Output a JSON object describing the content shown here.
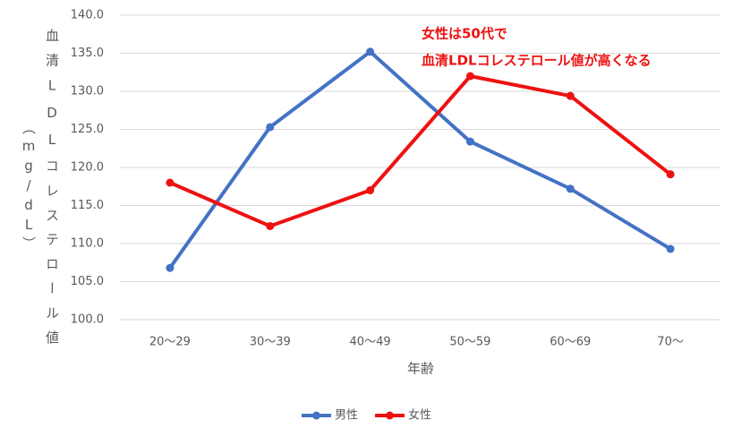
{
  "chart_data": {
    "type": "line",
    "categories": [
      "20〜29",
      "30〜39",
      "40〜49",
      "50〜59",
      "60〜69",
      "70〜"
    ],
    "series": [
      {
        "name": "男性",
        "color": "#4472c4",
        "values": [
          106.8,
          125.3,
          135.2,
          123.4,
          117.2,
          109.3
        ]
      },
      {
        "name": "女性",
        "color": "#ee1111",
        "values": [
          118.0,
          112.3,
          117.0,
          132.0,
          129.4,
          119.1
        ]
      }
    ],
    "ylim": [
      100,
      140
    ],
    "yticks": [
      {
        "value": 100,
        "label": "100.0"
      },
      {
        "value": 105,
        "label": "105.0"
      },
      {
        "value": 110,
        "label": "110.0"
      },
      {
        "value": 115,
        "label": "115.0"
      },
      {
        "value": 120,
        "label": "120.0"
      },
      {
        "value": 125,
        "label": "125.0"
      },
      {
        "value": 130,
        "label": "130.0"
      },
      {
        "value": 135,
        "label": "135.0"
      },
      {
        "value": 140,
        "label": "140.0"
      }
    ],
    "grid": true,
    "x_label": "年齢",
    "y_label_lines": [
      "血清LDLコレステロール値",
      "（mg/dL）"
    ],
    "annotation_lines": [
      "女性は50代で",
      "血清LDLコレステロール値が高くなる"
    ],
    "annotation_color": "#ee1111",
    "legend": "bottom"
  }
}
